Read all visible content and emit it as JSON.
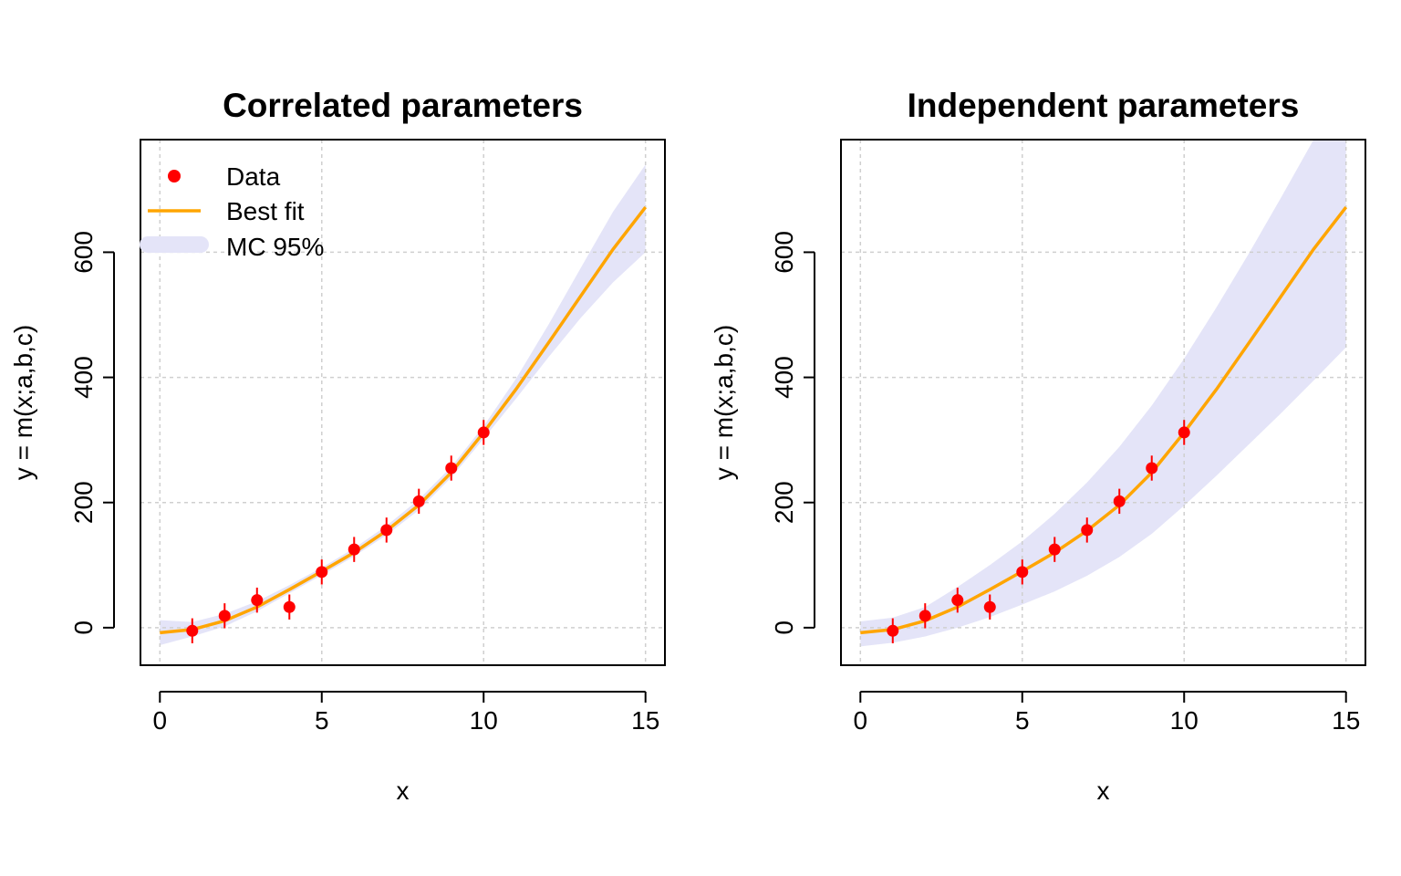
{
  "chart_data": [
    {
      "type": "line",
      "title": "Correlated parameters",
      "xlabel": "x",
      "ylabel": "y = m(x;a,b,c)",
      "xlim": [
        -0.6,
        15.6
      ],
      "ylim": [
        -60,
        780
      ],
      "xticks": [
        "0",
        "5",
        "10",
        "15"
      ],
      "yticks": [
        "0",
        "200",
        "400",
        "600"
      ],
      "grid": true,
      "legend": {
        "position": "top-left",
        "entries": [
          "Data",
          "Best fit",
          "MC 95%"
        ]
      },
      "series": [
        {
          "name": "Data",
          "type": "scatter",
          "color": "#ff0000",
          "x": [
            1,
            2,
            3,
            4,
            5,
            6,
            7,
            8,
            9,
            10
          ],
          "y": [
            -5,
            19,
            44,
            33,
            89,
            125,
            156,
            202,
            255,
            312
          ],
          "err": [
            20,
            20,
            20,
            20,
            20,
            20,
            20,
            20,
            20,
            20
          ]
        },
        {
          "name": "Best fit",
          "type": "line",
          "color": "#ffa500",
          "x": [
            0,
            1,
            2,
            3,
            4,
            5,
            6,
            7,
            8,
            9,
            10,
            11,
            12,
            13,
            14,
            15
          ],
          "y": [
            -8,
            -3,
            11,
            33,
            61,
            90,
            120,
            155,
            196,
            248,
            312,
            381,
            455,
            530,
            605,
            672
          ]
        },
        {
          "name": "MC 95%",
          "type": "area",
          "color": "#e4e4f8",
          "x": [
            0,
            1,
            2,
            3,
            4,
            5,
            6,
            7,
            8,
            9,
            10,
            11,
            12,
            13,
            14,
            15
          ],
          "lower": [
            -28,
            -14,
            2,
            26,
            55,
            84,
            114,
            148,
            188,
            240,
            302,
            366,
            432,
            495,
            552,
            600
          ],
          "upper": [
            12,
            9,
            22,
            42,
            68,
            96,
            127,
            163,
            205,
            257,
            322,
            398,
            484,
            575,
            665,
            740
          ]
        }
      ]
    },
    {
      "type": "line",
      "title": "Independent parameters",
      "xlabel": "x",
      "ylabel": "y = m(x;a,b,c)",
      "xlim": [
        -0.6,
        15.6
      ],
      "ylim": [
        -60,
        780
      ],
      "xticks": [
        "0",
        "5",
        "10",
        "15"
      ],
      "yticks": [
        "0",
        "200",
        "400",
        "600"
      ],
      "grid": true,
      "series": [
        {
          "name": "Data",
          "type": "scatter",
          "color": "#ff0000",
          "x": [
            1,
            2,
            3,
            4,
            5,
            6,
            7,
            8,
            9,
            10
          ],
          "y": [
            -5,
            19,
            44,
            33,
            89,
            125,
            156,
            202,
            255,
            312
          ],
          "err": [
            20,
            20,
            20,
            20,
            20,
            20,
            20,
            20,
            20,
            20
          ]
        },
        {
          "name": "Best fit",
          "type": "line",
          "color": "#ffa500",
          "x": [
            0,
            1,
            2,
            3,
            4,
            5,
            6,
            7,
            8,
            9,
            10,
            11,
            12,
            13,
            14,
            15
          ],
          "y": [
            -8,
            -3,
            11,
            33,
            61,
            90,
            120,
            155,
            196,
            248,
            312,
            381,
            455,
            530,
            605,
            672
          ]
        },
        {
          "name": "MC 95%",
          "type": "area",
          "color": "#e4e4f8",
          "x": [
            0,
            1,
            2,
            3,
            4,
            5,
            6,
            7,
            8,
            9,
            10,
            11,
            12,
            13,
            14,
            15
          ],
          "lower": [
            -30,
            -24,
            -14,
            0,
            17,
            37,
            58,
            83,
            113,
            150,
            195,
            243,
            293,
            343,
            395,
            448
          ],
          "upper": [
            10,
            16,
            33,
            65,
            100,
            138,
            182,
            232,
            289,
            355,
            430,
            512,
            598,
            688,
            780,
            780
          ]
        }
      ]
    }
  ]
}
